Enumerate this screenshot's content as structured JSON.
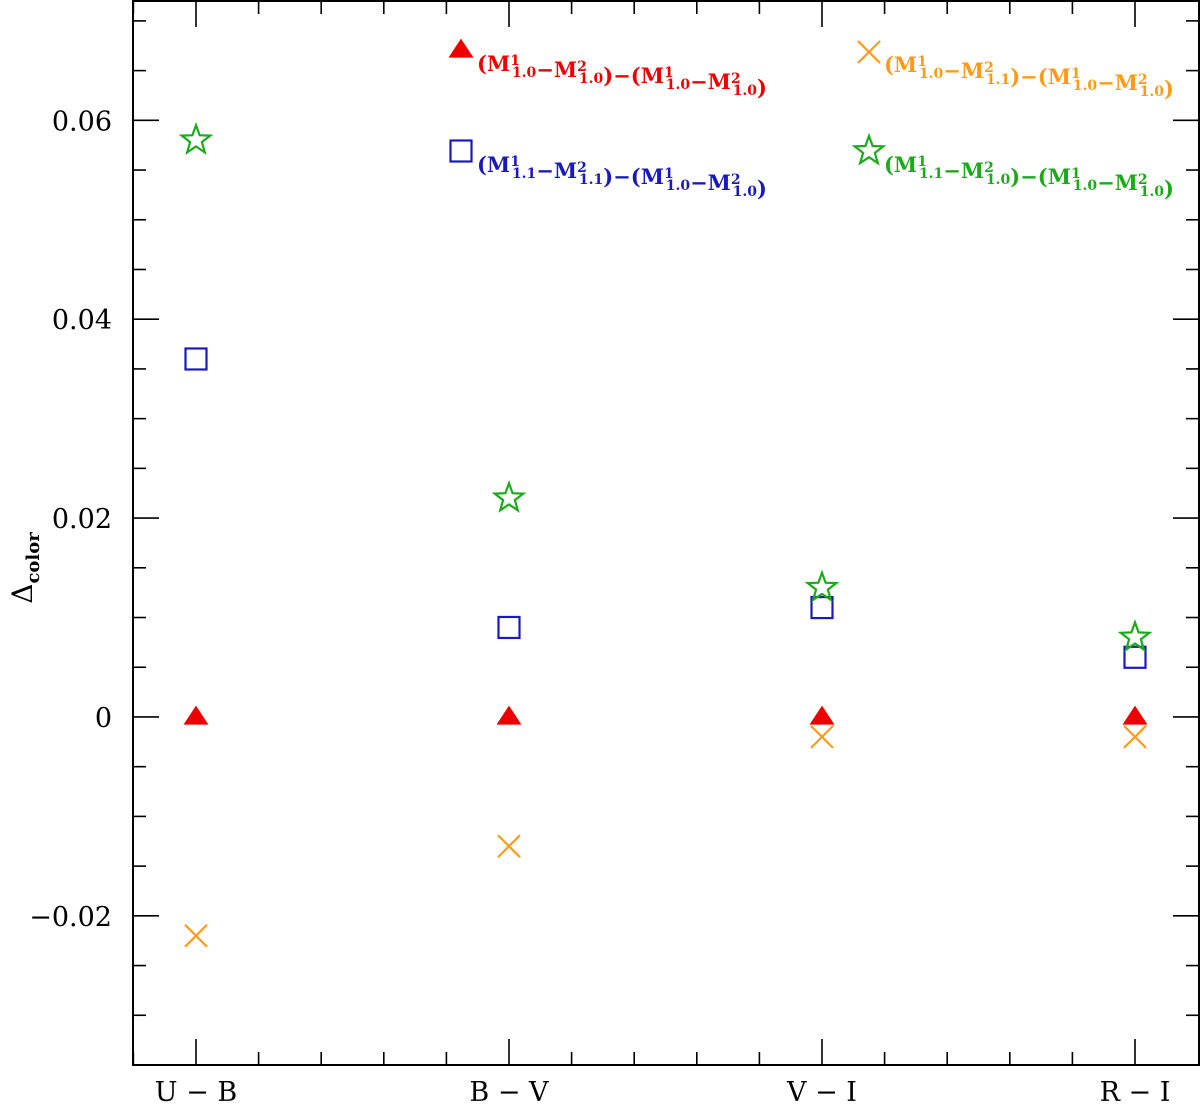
{
  "chart_data": {
    "type": "scatter",
    "categories": [
      "U-B",
      "B-V",
      "V-I",
      "R-I"
    ],
    "ylabel": {
      "base": "Δ",
      "sub": "color"
    },
    "ylim": [
      -0.035,
      0.072
    ],
    "yticks": [
      {
        "value": -0.02,
        "label": "−0.02"
      },
      {
        "value": 0,
        "label": "0"
      },
      {
        "value": 0.02,
        "label": "0.02"
      },
      {
        "value": 0.04,
        "label": "0.04"
      },
      {
        "value": 0.06,
        "label": "0.06"
      }
    ],
    "grid": false,
    "series": [
      {
        "key": "red-triangle",
        "marker": "filled-triangle",
        "color": "#ee0000",
        "values": [
          0.0,
          0.0,
          0.0,
          0.0
        ],
        "legend": [
          {
            "t": "(M",
            "sup": "1",
            "sub": "1.0"
          },
          {
            "t": "−M",
            "sup": "2",
            "sub": "1.0"
          },
          {
            "t": ")−(M",
            "sup": "1",
            "sub": "1.0"
          },
          {
            "t": "−M",
            "sup": "2",
            "sub": "1.0"
          },
          {
            "t": ")"
          }
        ]
      },
      {
        "key": "orange-cross",
        "marker": "cross",
        "color": "#ff9a17",
        "values": [
          -0.022,
          -0.013,
          -0.002,
          -0.002
        ],
        "legend": [
          {
            "t": "(M",
            "sup": "1",
            "sub": "1.0"
          },
          {
            "t": "−M",
            "sup": "2",
            "sub": "1.1"
          },
          {
            "t": ")−(M",
            "sup": "1",
            "sub": "1.0"
          },
          {
            "t": "−M",
            "sup": "2",
            "sub": "1.0"
          },
          {
            "t": ")"
          }
        ]
      },
      {
        "key": "blue-square",
        "marker": "open-square",
        "color": "#1a1aba",
        "values": [
          0.036,
          0.009,
          0.011,
          0.006
        ],
        "legend": [
          {
            "t": "(M",
            "sup": "1",
            "sub": "1.1"
          },
          {
            "t": "−M",
            "sup": "2",
            "sub": "1.1"
          },
          {
            "t": ")−(M",
            "sup": "1",
            "sub": "1.0"
          },
          {
            "t": "−M",
            "sup": "2",
            "sub": "1.0"
          },
          {
            "t": ")"
          }
        ]
      },
      {
        "key": "green-star",
        "marker": "open-star",
        "color": "#1aaa1a",
        "values": [
          0.058,
          0.022,
          0.013,
          0.008
        ],
        "legend": [
          {
            "t": "(M",
            "sup": "1",
            "sub": "1.1"
          },
          {
            "t": "−M",
            "sup": "2",
            "sub": "1.0"
          },
          {
            "t": ")−(M",
            "sup": "1",
            "sub": "1.0"
          },
          {
            "t": "−M",
            "sup": "2",
            "sub": "1.0"
          },
          {
            "t": ")"
          }
        ]
      }
    ],
    "legend_layout": "2x2 grid at top (red/orange top row, blue/green second row)"
  }
}
